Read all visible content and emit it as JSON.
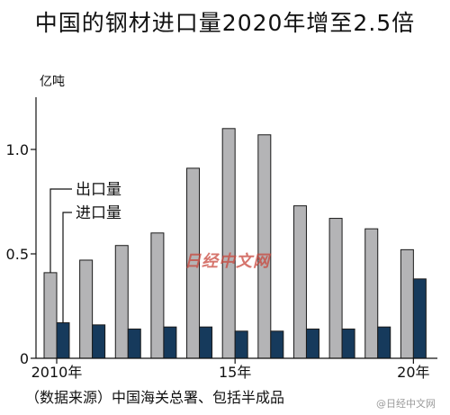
{
  "chart_data": {
    "type": "bar",
    "title": "中国的钢材进口量2020年增至2.5倍",
    "ylabel": "亿吨",
    "source": "（数据来源）中国海关总署、包括半成品",
    "ylim": [
      0,
      1.25
    ],
    "yticks": [
      "0",
      "0.5",
      "1.0"
    ],
    "x": [
      2010,
      2011,
      2012,
      2013,
      2014,
      2015,
      2016,
      2017,
      2018,
      2019,
      2020
    ],
    "xtick_labels": [
      "2010年",
      "15年",
      "20年"
    ],
    "series": [
      {
        "name": "出口量",
        "color": "#b4b4b6",
        "values": [
          0.41,
          0.47,
          0.54,
          0.6,
          0.91,
          1.1,
          1.07,
          0.73,
          0.67,
          0.62,
          0.52
        ]
      },
      {
        "name": "进口量",
        "color": "#163a5c",
        "values": [
          0.17,
          0.16,
          0.14,
          0.15,
          0.15,
          0.13,
          0.13,
          0.14,
          0.14,
          0.15,
          0.38
        ]
      }
    ]
  },
  "watermark": "日经中文网",
  "corner_mark": "@日经中文网"
}
